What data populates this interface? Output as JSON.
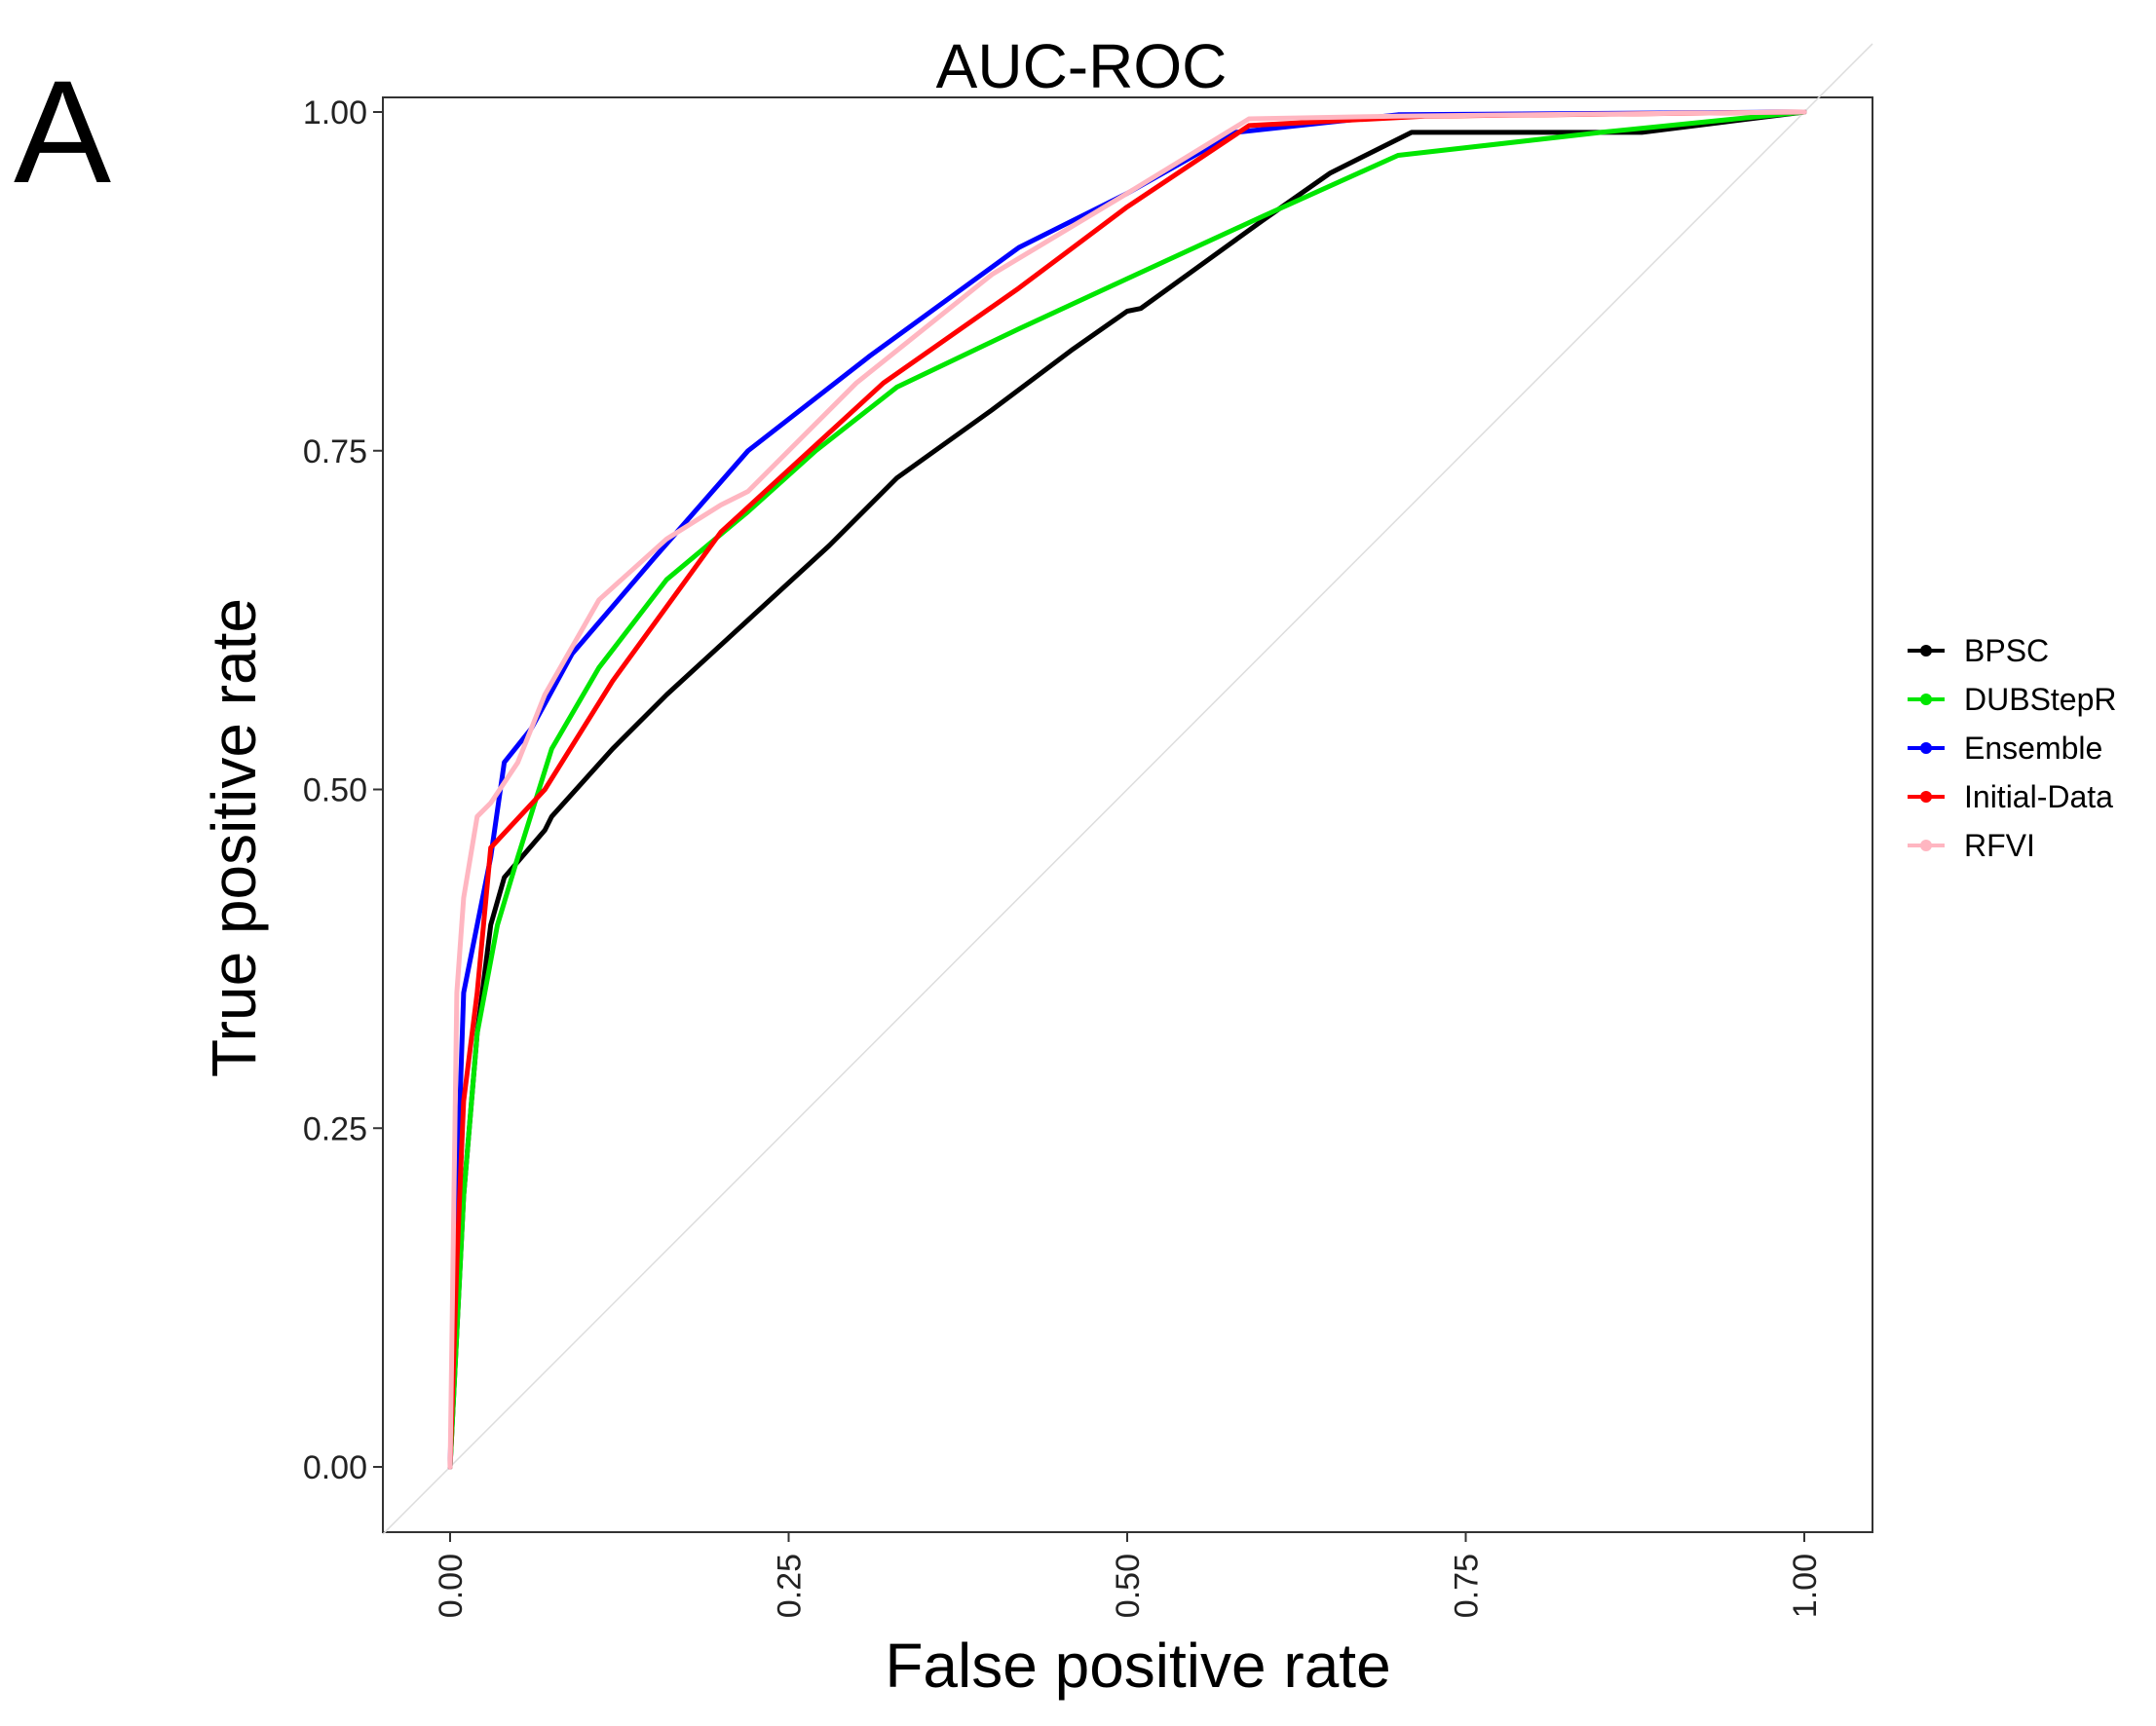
{
  "panel_label": "A",
  "chart_data": {
    "type": "line",
    "title": "AUC-ROC",
    "xlabel": "False positive rate",
    "ylabel": "True positive rate",
    "xlim": [
      0,
      1
    ],
    "ylim": [
      0,
      1
    ],
    "xticks": [
      0,
      0.25,
      0.5,
      0.75,
      1
    ],
    "yticks": [
      0,
      0.25,
      0.5,
      0.75,
      1
    ],
    "xtick_labels": [
      "0.00",
      "0.25",
      "0.50",
      "0.75",
      "1.00"
    ],
    "ytick_labels": [
      "0.00",
      "0.25",
      "0.50",
      "0.75",
      "1.00"
    ],
    "grid": false,
    "legend_position": "right",
    "reference_line": {
      "x": [
        0,
        1
      ],
      "y": [
        0,
        1
      ],
      "color": "#dddddd"
    },
    "series": [
      {
        "name": "BPSC",
        "color": "#000000",
        "x": [
          0,
          0.01,
          0.02,
          0.03,
          0.04,
          0.07,
          0.075,
          0.12,
          0.16,
          0.22,
          0.28,
          0.33,
          0.4,
          0.46,
          0.5,
          0.51,
          0.6,
          0.65,
          0.71,
          0.88,
          1.0
        ],
        "y": [
          0,
          0.2,
          0.32,
          0.4,
          0.435,
          0.47,
          0.48,
          0.53,
          0.57,
          0.625,
          0.68,
          0.73,
          0.78,
          0.825,
          0.853,
          0.855,
          0.92,
          0.955,
          0.985,
          0.985,
          1.0
        ]
      },
      {
        "name": "DUBStepR",
        "color": "#00e600",
        "x": [
          0,
          0.01,
          0.02,
          0.035,
          0.05,
          0.075,
          0.11,
          0.16,
          0.22,
          0.27,
          0.33,
          0.42,
          0.5,
          0.6,
          0.7,
          0.85,
          1.0
        ],
        "y": [
          0,
          0.2,
          0.32,
          0.4,
          0.45,
          0.53,
          0.59,
          0.655,
          0.705,
          0.75,
          0.797,
          0.84,
          0.877,
          0.923,
          0.968,
          0.985,
          1.0
        ]
      },
      {
        "name": "Ensemble",
        "color": "#0000ff",
        "x": [
          0,
          0.005,
          0.01,
          0.02,
          0.03,
          0.04,
          0.06,
          0.09,
          0.15,
          0.22,
          0.31,
          0.42,
          0.5,
          0.58,
          0.7,
          1.0
        ],
        "y": [
          0,
          0.2,
          0.35,
          0.4,
          0.45,
          0.52,
          0.545,
          0.6,
          0.67,
          0.75,
          0.82,
          0.9,
          0.94,
          0.985,
          0.998,
          1.0
        ]
      },
      {
        "name": "Initial-Data",
        "color": "#ff0000",
        "x": [
          0,
          0.005,
          0.01,
          0.02,
          0.03,
          0.07,
          0.12,
          0.2,
          0.32,
          0.42,
          0.5,
          0.59,
          0.72,
          1.0
        ],
        "y": [
          0,
          0.15,
          0.27,
          0.35,
          0.457,
          0.5,
          0.58,
          0.69,
          0.8,
          0.87,
          0.93,
          0.99,
          0.997,
          1.0
        ]
      },
      {
        "name": "RFVI",
        "color": "#ffb6c1",
        "x": [
          0,
          0.005,
          0.01,
          0.02,
          0.03,
          0.05,
          0.07,
          0.11,
          0.16,
          0.2,
          0.22,
          0.3,
          0.4,
          0.5,
          0.59,
          0.7,
          1.0
        ],
        "y": [
          0,
          0.35,
          0.42,
          0.48,
          0.49,
          0.52,
          0.57,
          0.64,
          0.685,
          0.71,
          0.72,
          0.8,
          0.88,
          0.94,
          0.995,
          0.997,
          1.0
        ]
      }
    ]
  }
}
